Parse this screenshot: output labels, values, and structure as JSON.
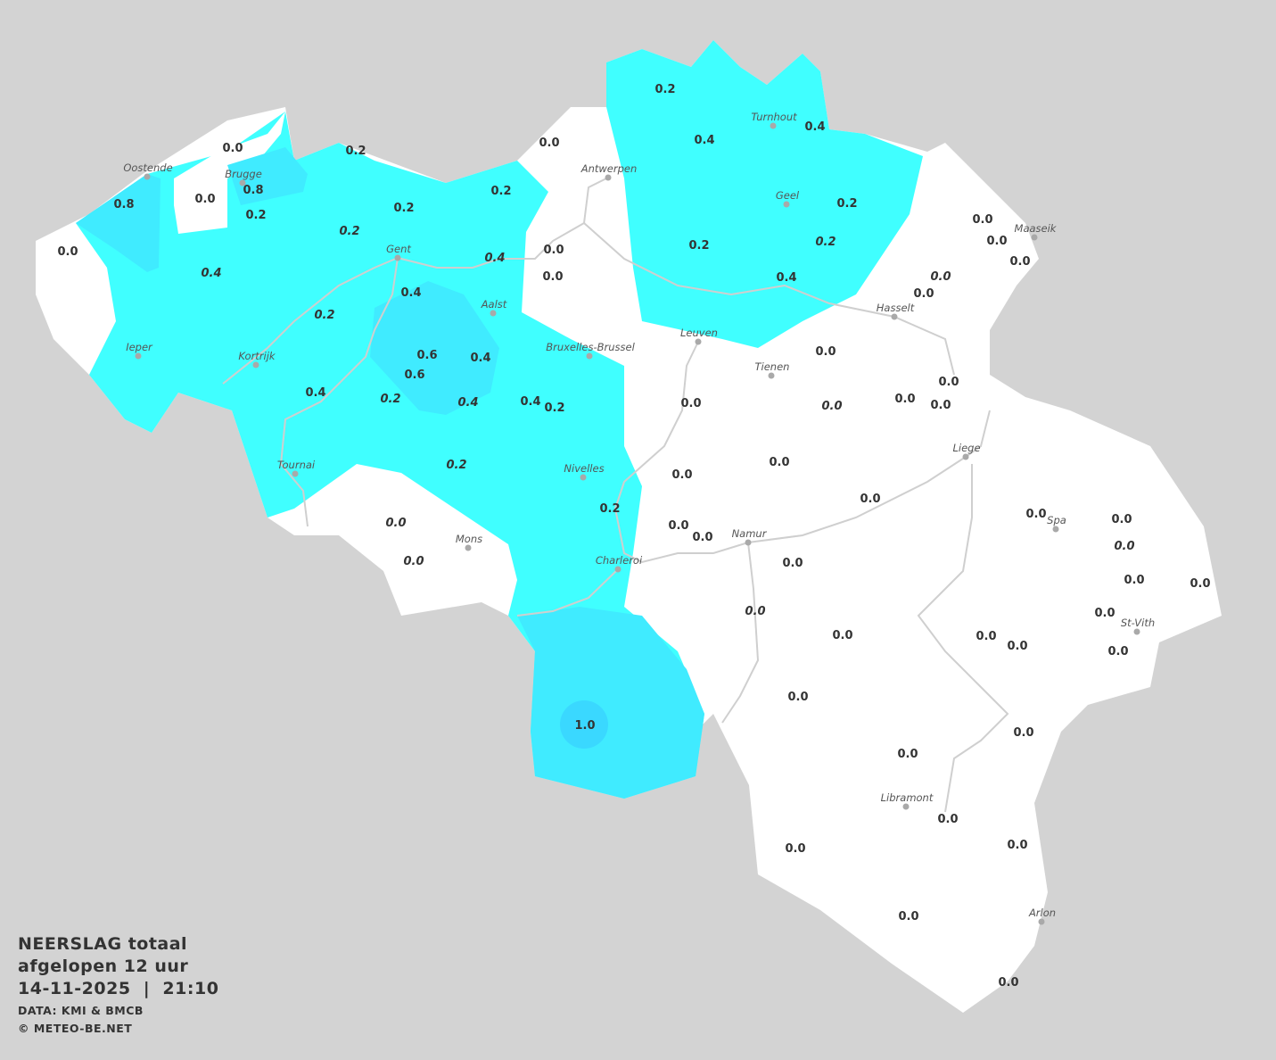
{
  "legend": {
    "title": "NEERSLAG totaal",
    "period": "afgelopen 12 uur",
    "datetime": "14-11-2025  |  21:10",
    "source": "DATA: KMI & BMCB",
    "copyright": "© METEO-BE.NET"
  },
  "colors": {
    "background": "#d3d3d3",
    "no_precip": "#ffffff",
    "precip_0_2": "#40ffff",
    "precip_0_4": "#40ebff",
    "precip_1_0": "#3ad8ff"
  },
  "cities": [
    "Oostende",
    "Brugge",
    "Gent",
    "Antwerpen",
    "Turnhout",
    "Geel",
    "Maaseik",
    "Hasselt",
    "Leuven",
    "Tienen",
    "Aalst",
    "Bruxelles-Brussel",
    "Ieper",
    "Kortrijk",
    "Tournai",
    "Nivelles",
    "Liege",
    "Mons",
    "Namur",
    "Charleroi",
    "Spa",
    "St-Vith",
    "Libramont",
    "Arlon"
  ],
  "values": [
    {
      "v": "0.0"
    },
    {
      "v": "0.0"
    },
    {
      "v": "0.8"
    },
    {
      "v": "0.8"
    },
    {
      "v": "0.2"
    },
    {
      "v": "0.2"
    },
    {
      "v": "0.2"
    },
    {
      "v": "0.2"
    },
    {
      "v": "0.2",
      "italic": true
    },
    {
      "v": "0.0"
    },
    {
      "v": "0.4",
      "italic": true
    },
    {
      "v": "0.0"
    },
    {
      "v": "0.0"
    },
    {
      "v": "0.0"
    },
    {
      "v": "0.4",
      "italic": true
    },
    {
      "v": "0.4"
    },
    {
      "v": "0.2",
      "italic": true
    },
    {
      "v": "0.6"
    },
    {
      "v": "0.6"
    },
    {
      "v": "0.4"
    },
    {
      "v": "0.4"
    },
    {
      "v": "0.2",
      "italic": true
    },
    {
      "v": "0.4",
      "italic": true
    },
    {
      "v": "0.4"
    },
    {
      "v": "0.2"
    },
    {
      "v": "0.2",
      "italic": true
    },
    {
      "v": "0.2"
    },
    {
      "v": "0.0",
      "italic": true
    },
    {
      "v": "0.0",
      "italic": true
    },
    {
      "v": "1.0"
    },
    {
      "v": "0.2"
    },
    {
      "v": "0.4"
    },
    {
      "v": "0.4"
    },
    {
      "v": "0.2"
    },
    {
      "v": "0.2"
    },
    {
      "v": "0.2",
      "italic": true
    },
    {
      "v": "0.4"
    },
    {
      "v": "0.0"
    },
    {
      "v": "0.0"
    },
    {
      "v": "0.0"
    },
    {
      "v": "0.0",
      "italic": true
    },
    {
      "v": "0.0"
    },
    {
      "v": "0.0"
    },
    {
      "v": "0.0"
    },
    {
      "v": "0.0"
    },
    {
      "v": "0.0",
      "italic": true
    },
    {
      "v": "0.0"
    },
    {
      "v": "0.0"
    },
    {
      "v": "0.0"
    },
    {
      "v": "0.0"
    },
    {
      "v": "0.0"
    },
    {
      "v": "0.0"
    },
    {
      "v": "0.0"
    },
    {
      "v": "0.0"
    },
    {
      "v": "0.0"
    },
    {
      "v": "0.0"
    },
    {
      "v": "0.0",
      "italic": true
    },
    {
      "v": "0.0"
    },
    {
      "v": "0.0"
    },
    {
      "v": "0.0"
    },
    {
      "v": "0.0",
      "italic": true
    },
    {
      "v": "0.0"
    },
    {
      "v": "0.0"
    },
    {
      "v": "0.0"
    },
    {
      "v": "0.0"
    },
    {
      "v": "0.0"
    },
    {
      "v": "0.0"
    },
    {
      "v": "0.0"
    },
    {
      "v": "0.0"
    },
    {
      "v": "0.0"
    },
    {
      "v": "0.0"
    },
    {
      "v": "0.0"
    },
    {
      "v": "0.0"
    }
  ]
}
